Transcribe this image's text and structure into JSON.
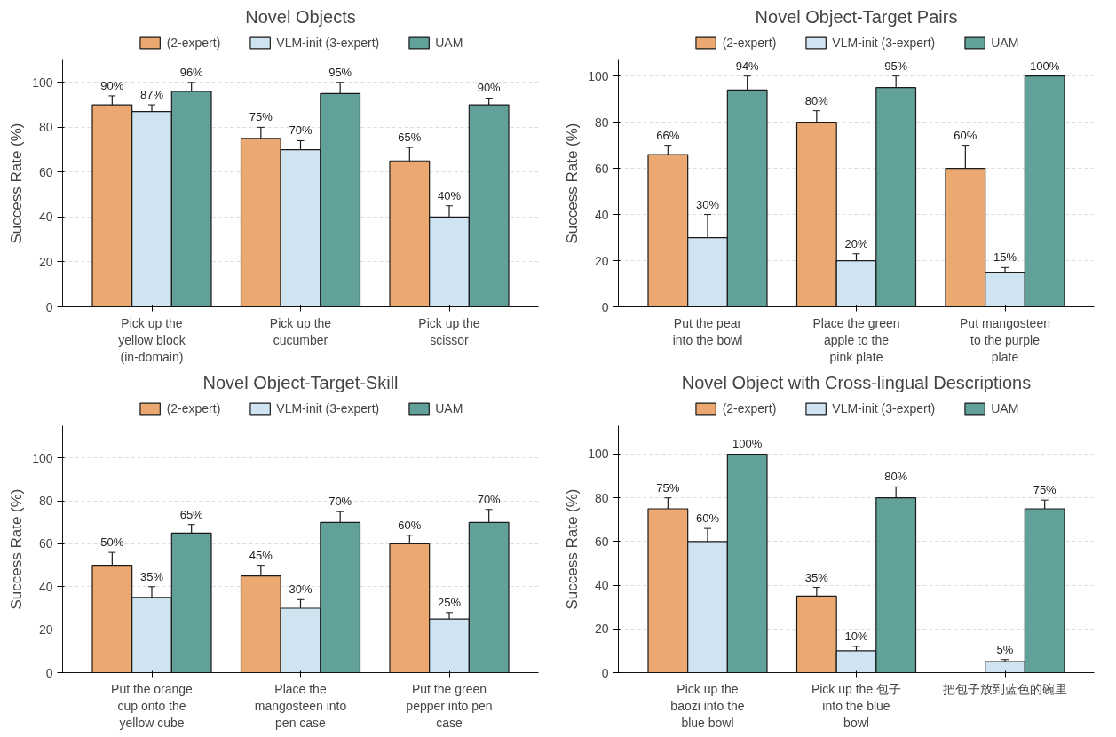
{
  "chart_data": [
    {
      "type": "bar",
      "title": "Novel Objects",
      "ylabel": "Success Rate (%)",
      "categories": [
        "Pick up the\nyellow block\n(in-domain)",
        "Pick up the\ncucumber",
        "Pick up the\nscissor"
      ],
      "ylim": [
        0,
        110
      ],
      "yticks": [
        0,
        20,
        40,
        60,
        80,
        100
      ],
      "grid": "y",
      "legend": "top",
      "series": [
        {
          "name": "(2-expert)",
          "color": "#eba870",
          "values": [
            90,
            75,
            65
          ],
          "errors": [
            4,
            5,
            6
          ],
          "value_labels": [
            "90%",
            "75%",
            "65%"
          ]
        },
        {
          "name": "VLM-init (3-expert)",
          "color": "#d0e3f1",
          "values": [
            87,
            70,
            40
          ],
          "errors": [
            3,
            4,
            5
          ],
          "value_labels": [
            "87%",
            "70%",
            "40%"
          ]
        },
        {
          "name": "UAM",
          "color": "#62a09a",
          "values": [
            96,
            95,
            90
          ],
          "errors": [
            4,
            5,
            3
          ],
          "value_labels": [
            "96%",
            "95%",
            "90%"
          ]
        }
      ]
    },
    {
      "type": "bar",
      "title": "Novel Object-Target Pairs",
      "ylabel": "Success Rate (%)",
      "categories": [
        "Put the pear\ninto the bowl",
        "Place the green\napple to the\npink plate",
        "Put mangosteen\nto the purple\nplate"
      ],
      "ylim": [
        0,
        107
      ],
      "yticks": [
        0,
        20,
        40,
        60,
        80,
        100
      ],
      "grid": "y",
      "legend": "top",
      "series": [
        {
          "name": "(2-expert)",
          "color": "#eba870",
          "values": [
            66,
            80,
            60
          ],
          "errors": [
            4,
            5,
            10
          ],
          "value_labels": [
            "66%",
            "80%",
            "60%"
          ]
        },
        {
          "name": "VLM-init (3-expert)",
          "color": "#d0e3f1",
          "values": [
            30,
            20,
            15
          ],
          "errors": [
            10,
            3,
            2
          ],
          "value_labels": [
            "30%",
            "20%",
            "15%"
          ]
        },
        {
          "name": "UAM",
          "color": "#62a09a",
          "values": [
            94,
            95,
            100
          ],
          "errors": [
            6,
            5,
            null
          ],
          "value_labels": [
            "94%",
            "95%",
            "100%"
          ]
        }
      ]
    },
    {
      "type": "bar",
      "title": "Novel Object-Target-Skill",
      "ylabel": "Success Rate (%)",
      "categories": [
        "Put the orange\ncup onto the\nyellow cube",
        "Place the\nmangosteen into\npen case",
        "Put the green\npepper into pen\ncase"
      ],
      "ylim": [
        0,
        115
      ],
      "yticks": [
        0,
        20,
        40,
        60,
        80,
        100
      ],
      "grid": "y",
      "legend": "top",
      "series": [
        {
          "name": "(2-expert)",
          "color": "#eba870",
          "values": [
            50,
            45,
            60
          ],
          "errors": [
            6,
            5,
            4
          ],
          "value_labels": [
            "50%",
            "45%",
            "60%"
          ]
        },
        {
          "name": "VLM-init (3-expert)",
          "color": "#d0e3f1",
          "values": [
            35,
            30,
            25
          ],
          "errors": [
            5,
            4,
            3
          ],
          "value_labels": [
            "35%",
            "30%",
            "25%"
          ]
        },
        {
          "name": "UAM",
          "color": "#62a09a",
          "values": [
            65,
            70,
            70
          ],
          "errors": [
            4,
            5,
            6
          ],
          "value_labels": [
            "65%",
            "70%",
            "70%"
          ]
        }
      ]
    },
    {
      "type": "bar",
      "title": "Novel Object with Cross-lingual Descriptions",
      "ylabel": "Success Rate (%)",
      "categories": [
        "Pick up the\nbaozi into the\nblue bowl",
        "Pick up the 包子\ninto the blue\nbowl",
        "把包子放到蓝色的碗里"
      ],
      "ylim": [
        0,
        113
      ],
      "yticks": [
        0,
        20,
        40,
        60,
        80,
        100
      ],
      "grid": "y",
      "legend": "top",
      "series": [
        {
          "name": "(2-expert)",
          "color": "#eba870",
          "values": [
            75,
            35,
            null
          ],
          "errors": [
            5,
            4,
            null
          ],
          "value_labels": [
            "75%",
            "35%",
            null
          ]
        },
        {
          "name": "VLM-init (3-expert)",
          "color": "#d0e3f1",
          "values": [
            60,
            10,
            5
          ],
          "errors": [
            6,
            2,
            1
          ],
          "value_labels": [
            "60%",
            "10%",
            "5%"
          ]
        },
        {
          "name": "UAM",
          "color": "#62a09a",
          "values": [
            100,
            80,
            75
          ],
          "errors": [
            null,
            5,
            4
          ],
          "value_labels": [
            "100%",
            "80%",
            "75%"
          ]
        }
      ]
    }
  ]
}
